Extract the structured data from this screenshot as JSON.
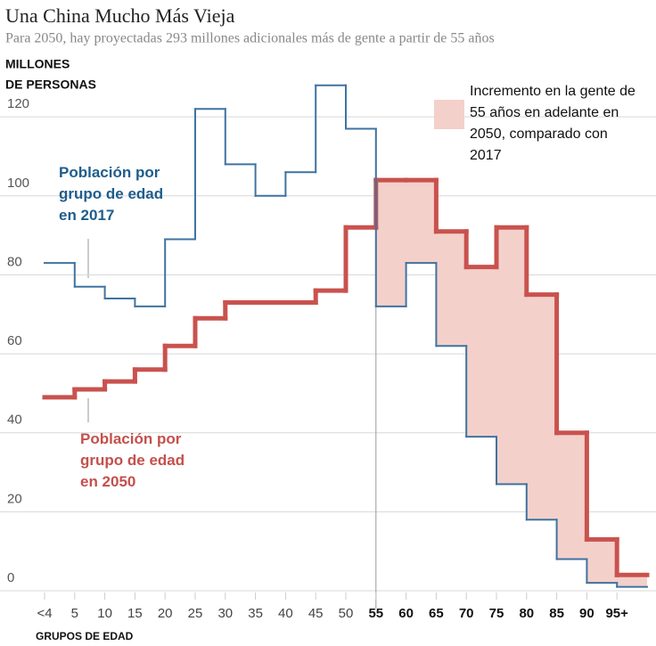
{
  "chart_data": {
    "type": "step",
    "title": "Una China Mucho Más Vieja",
    "subtitle": "Para 2050, hay proyectadas 293 millones adicionales más de gente a partir de 55 años",
    "y_label": [
      "MILLONES",
      "DE PERSONAS"
    ],
    "x_label": "GRUPOS DE EDAD",
    "categories": [
      "<4",
      "5",
      "10",
      "15",
      "20",
      "25",
      "30",
      "35",
      "40",
      "45",
      "50",
      "55",
      "60",
      "65",
      "70",
      "75",
      "80",
      "85",
      "90",
      "95+"
    ],
    "series": [
      {
        "name": "Población por grupo de edad en 2017",
        "color": "#3f73a0",
        "label_color": "#1f5d8c",
        "values": [
          83,
          77,
          74,
          72,
          89,
          122,
          108,
          100,
          106,
          128,
          117,
          72,
          83,
          62,
          39,
          27,
          18,
          8,
          2,
          1
        ]
      },
      {
        "name": "Población por grupo de edad en 2050",
        "color": "#c9524e",
        "label_color": "#c4504c",
        "values": [
          49,
          51,
          53,
          56,
          62,
          69,
          73,
          73,
          73,
          76,
          92,
          104,
          104,
          91,
          82,
          92,
          75,
          40,
          13,
          4
        ]
      }
    ],
    "shading": {
      "label": "Incremento en la gente de 55 años en adelante en 2050, comparado con 2017",
      "color": "#f4d0ca",
      "from": "55"
    },
    "ylim": [
      0,
      125
    ],
    "yticks": [
      0,
      20,
      40,
      60,
      80,
      100,
      120
    ],
    "grid": true
  }
}
